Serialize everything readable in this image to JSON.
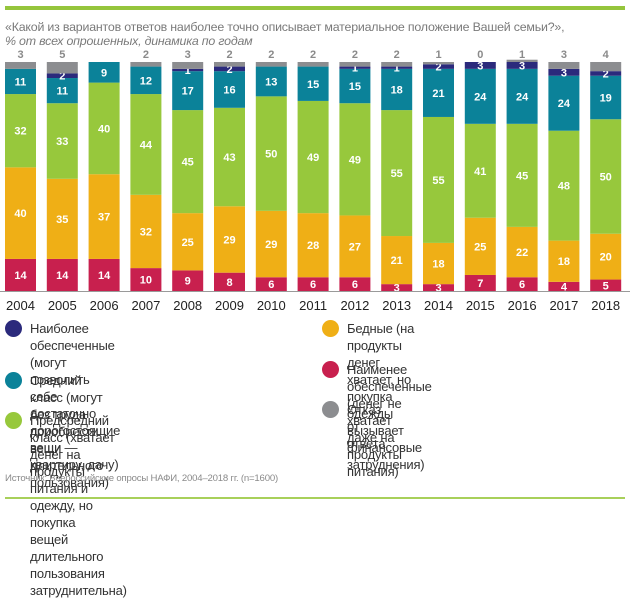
{
  "header": {
    "title": "«Какой из вариантов ответов наиболее точно описывает материальное положение Вашей семьи?»,",
    "subtitle": "% от всех опрошенных, динамика по годам"
  },
  "chart_data": {
    "type": "bar",
    "stacked": true,
    "title": "«Какой из вариантов ответов наиболее точно описывает материальное положение Вашей семьи?»",
    "subtitle": "% от всех опрошенных, динамика по годам",
    "xlabel": "",
    "ylabel": "",
    "ylim": [
      0,
      100
    ],
    "grid": false,
    "legend_position": "bottom",
    "categories": [
      "2004",
      "2005",
      "2006",
      "2007",
      "2008",
      "2009",
      "2010",
      "2011",
      "2012",
      "2013",
      "2014",
      "2015",
      "2016",
      "2017",
      "2018"
    ],
    "series": [
      {
        "key": "least",
        "name": "Наименее обеспеченные (денег не хватает даже на продукты питания)",
        "color": "#c8204e",
        "values": [
          14,
          14,
          14,
          10,
          9,
          8,
          6,
          6,
          6,
          3,
          3,
          7,
          6,
          4,
          5
        ]
      },
      {
        "key": "poor",
        "name": "Бедные (на продукты денег хватает, но покупка одежды вызывает финансовые затруднения)",
        "color": "#efaf16",
        "values": [
          40,
          35,
          37,
          32,
          25,
          29,
          29,
          28,
          27,
          21,
          18,
          25,
          22,
          18,
          20
        ]
      },
      {
        "key": "premiddle",
        "name": "Предсредний класс (хватает денег на продукты питания и одежду, но покупка вещей длительного пользования затруднительна)",
        "color": "#97c83c",
        "values": [
          32,
          33,
          40,
          44,
          45,
          43,
          50,
          49,
          49,
          55,
          55,
          41,
          45,
          48,
          50
        ]
      },
      {
        "key": "middle",
        "name": "Средний класс (могут без труда приобрести вещи длительного пользования)",
        "color": "#0b8299",
        "values": [
          11,
          11,
          9,
          12,
          17,
          16,
          13,
          15,
          15,
          18,
          21,
          24,
          24,
          24,
          19
        ]
      },
      {
        "key": "most",
        "name": "Наиболее обеспеченные (могут позволить себе достаточно дорогостоящие вещи — квартиру, дачу)",
        "color": "#2b2a7c",
        "values": [
          0,
          2,
          0,
          0,
          1,
          2,
          0,
          0,
          1,
          1,
          2,
          3,
          3,
          3,
          2
        ]
      },
      {
        "key": "refusal",
        "name": "Отказ от ответа",
        "color": "#8c8d90",
        "values": [
          3,
          5,
          0,
          2,
          3,
          2,
          2,
          2,
          2,
          2,
          1,
          0,
          1,
          3,
          4
        ]
      }
    ],
    "segment_labels_shown": {
      "least": [
        true,
        true,
        true,
        true,
        true,
        true,
        true,
        true,
        true,
        true,
        true,
        true,
        true,
        true,
        true
      ],
      "poor": [
        true,
        true,
        true,
        true,
        true,
        true,
        true,
        true,
        true,
        true,
        true,
        true,
        true,
        true,
        true
      ],
      "premiddle": [
        true,
        true,
        true,
        true,
        true,
        true,
        true,
        true,
        true,
        true,
        true,
        true,
        true,
        true,
        true
      ],
      "middle": [
        true,
        true,
        true,
        true,
        true,
        true,
        true,
        true,
        true,
        true,
        true,
        true,
        true,
        true,
        true
      ],
      "most": [
        false,
        true,
        false,
        false,
        true,
        true,
        false,
        false,
        true,
        true,
        true,
        true,
        true,
        true,
        true
      ]
    },
    "top_labels": [
      "3",
      "5",
      "",
      "2",
      "3",
      "2",
      "2",
      "2",
      "2",
      "2",
      "1",
      "0",
      "1",
      "3",
      "4"
    ]
  },
  "legend": {
    "left": [
      {
        "key": "most",
        "color": "#2b2a7c",
        "text": "Наиболее обеспеченные (могут позволить\nсебе достаточно дорогостоящие вещи —\nквартиру, дачу)"
      },
      {
        "key": "middle",
        "color": "#0b8299",
        "text": "Средний класс (могут без труда\nприобрести вещи длительного пользования)"
      },
      {
        "key": "premiddle",
        "color": "#97c83c",
        "text": "Предсредний класс (хватает денег на\nпродукты питания и одежду, но покупка\nвещей длительного пользования затруднительна)"
      }
    ],
    "right": [
      {
        "key": "poor",
        "color": "#efaf16",
        "text": "Бедные (на продукты денег хватает, но покупка\nодежды вызывает финансовые затруднения)"
      },
      {
        "key": "least",
        "color": "#c8204e",
        "text": "Наименее обеспеченные (денег не хватает\nдаже на продукты питания)"
      },
      {
        "key": "refusal",
        "color": "#8c8d90",
        "text": "Отказ от ответа"
      }
    ]
  },
  "footer": {
    "source": "Источник: Всероссийские опросы НАФИ, 2004–2018 гг. (n=1600)"
  }
}
